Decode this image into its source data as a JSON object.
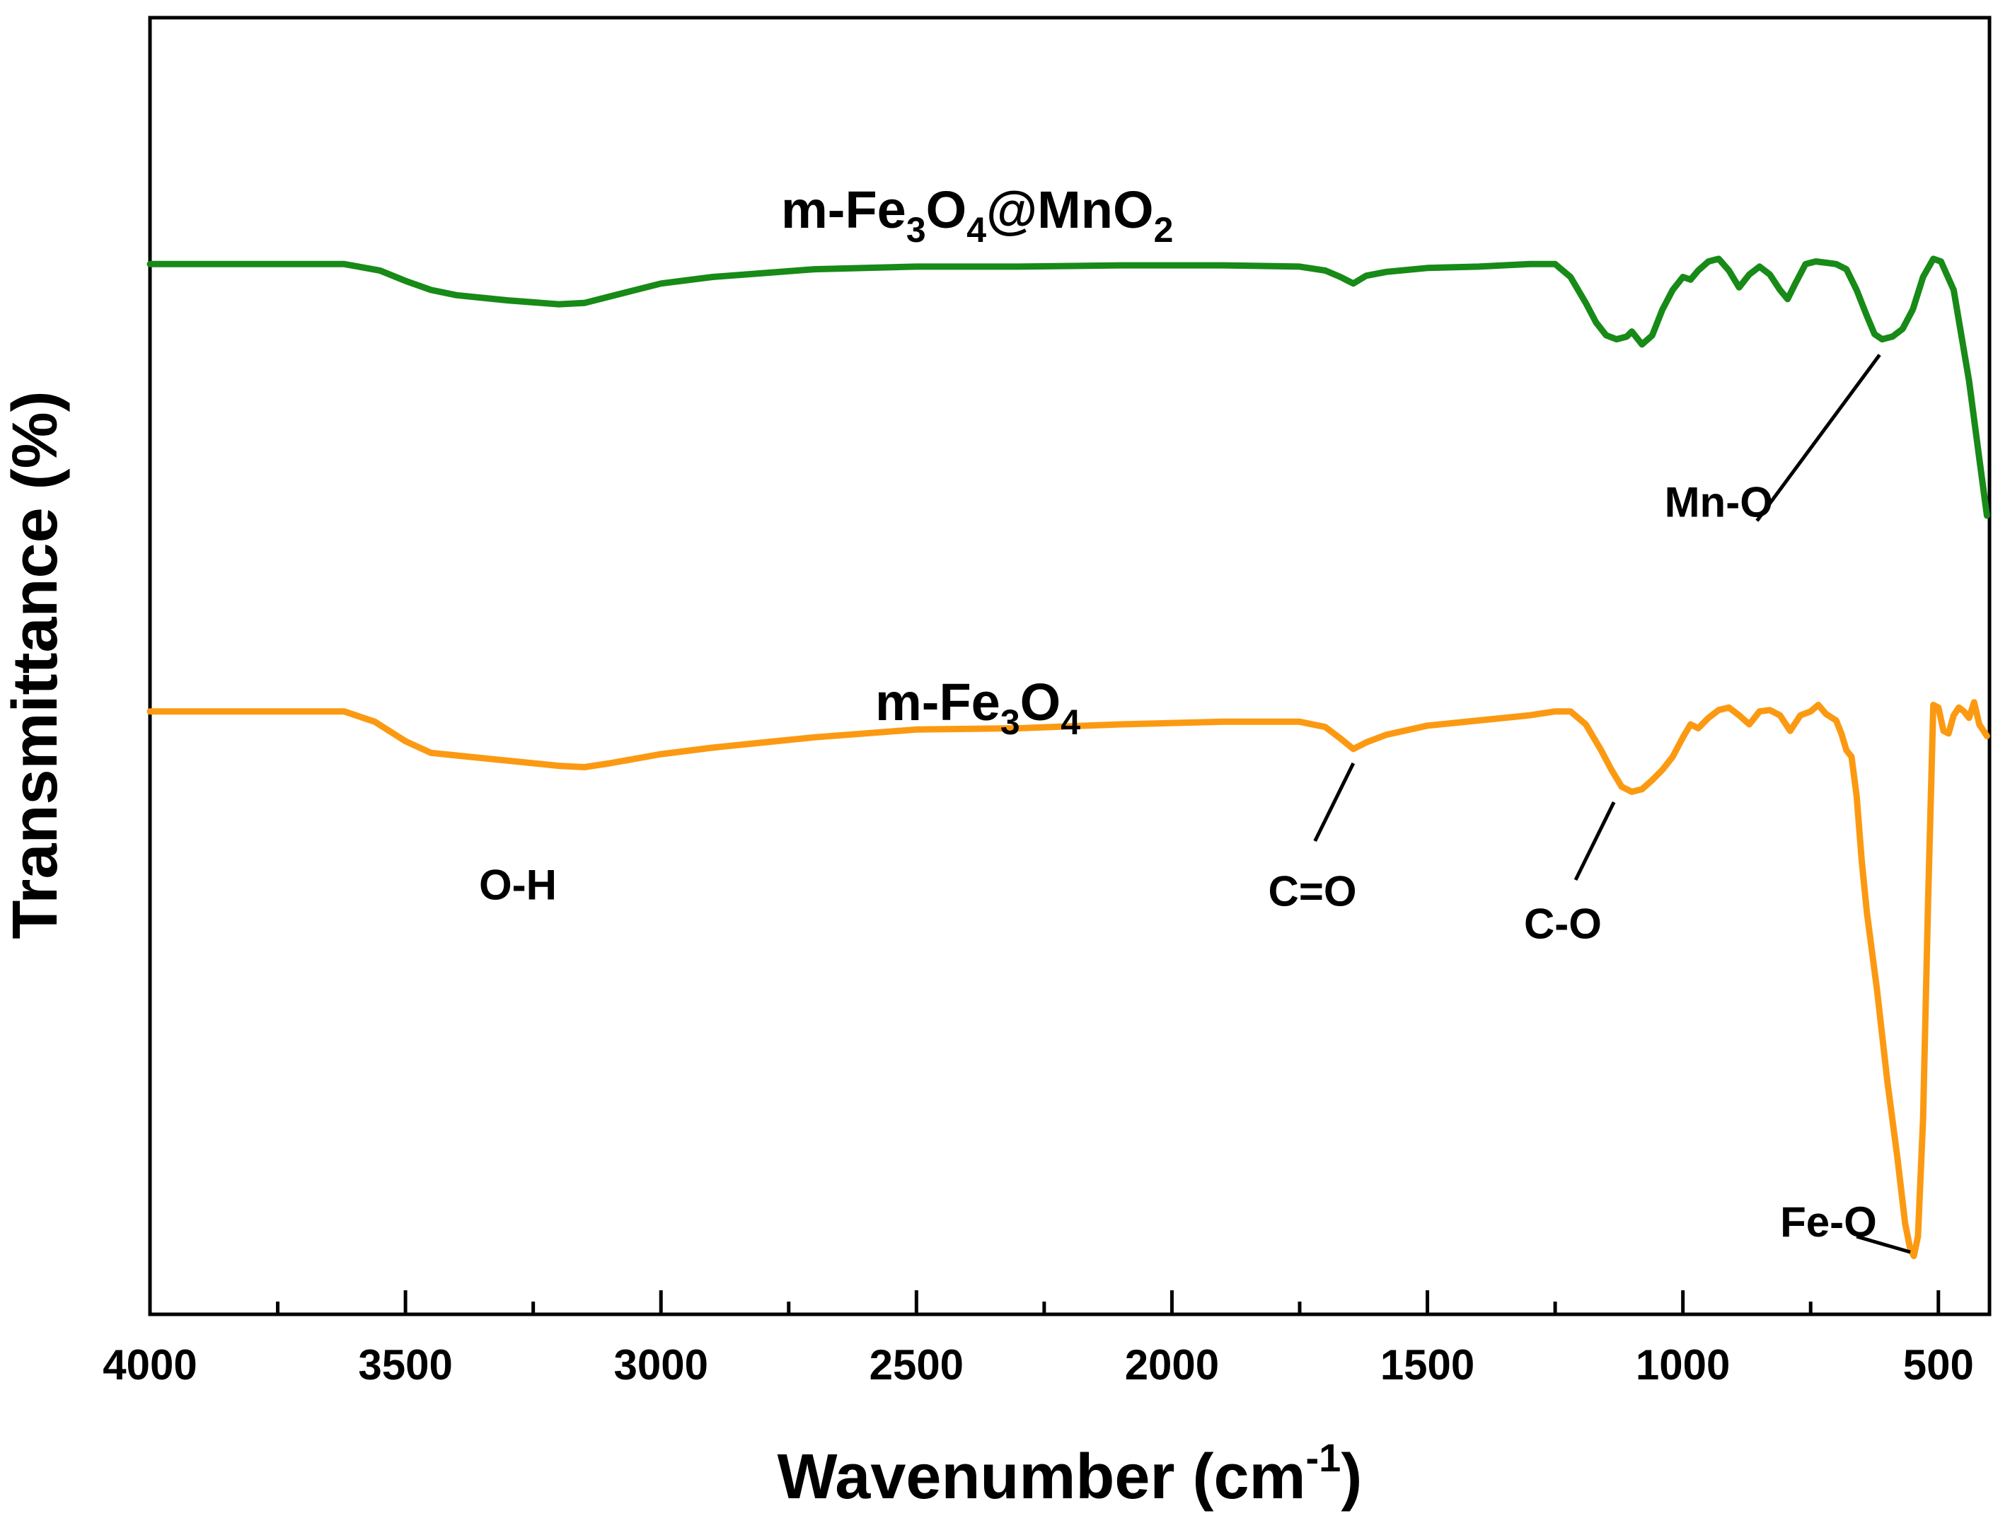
{
  "chart_data": {
    "type": "line",
    "title": "",
    "xlabel": "Wavenumber (cm",
    "xlabel_sup": "-1",
    "xlabel_close": ")",
    "ylabel": "Transmittance (%)",
    "xlim": [
      4000,
      400
    ],
    "ylim": [
      0,
      1
    ],
    "x_reversed": true,
    "y_ticks_shown": false,
    "x_ticks": [
      4000,
      3500,
      3000,
      2500,
      2000,
      1500,
      1000,
      500
    ],
    "x_tick_labels": [
      "4000",
      "3500",
      "3000",
      "2500",
      "2000",
      "1500",
      "1000",
      "500"
    ],
    "x_minor_ticks": [
      3750,
      3250,
      2750,
      2250,
      1750,
      1250,
      750
    ],
    "series": [
      {
        "name": "m-Fe3O4@MnO2",
        "label_parts": [
          {
            "t": "m-Fe",
            "sub": false
          },
          {
            "t": "3",
            "sub": true
          },
          {
            "t": "O",
            "sub": false
          },
          {
            "t": "4",
            "sub": true
          },
          {
            "t": "@MnO",
            "sub": false
          },
          {
            "t": "2",
            "sub": true
          }
        ],
        "color": "#178a17",
        "x": [
          4000,
          3800,
          3700,
          3620,
          3550,
          3500,
          3450,
          3400,
          3300,
          3200,
          3150,
          3100,
          3000,
          2900,
          2800,
          2700,
          2500,
          2300,
          2100,
          1900,
          1750,
          1700,
          1670,
          1645,
          1620,
          1580,
          1500,
          1400,
          1300,
          1250,
          1220,
          1190,
          1170,
          1150,
          1130,
          1110,
          1100,
          1080,
          1060,
          1040,
          1020,
          1000,
          985,
          970,
          950,
          930,
          910,
          890,
          870,
          850,
          830,
          810,
          795,
          780,
          760,
          740,
          720,
          700,
          680,
          660,
          640,
          625,
          610,
          590,
          570,
          550,
          530,
          510,
          495,
          470,
          440,
          420,
          405
        ],
        "y": [
          0.81,
          0.81,
          0.81,
          0.81,
          0.805,
          0.797,
          0.79,
          0.786,
          0.782,
          0.779,
          0.78,
          0.785,
          0.795,
          0.8,
          0.803,
          0.806,
          0.808,
          0.808,
          0.809,
          0.809,
          0.808,
          0.805,
          0.8,
          0.795,
          0.801,
          0.804,
          0.807,
          0.808,
          0.81,
          0.81,
          0.8,
          0.78,
          0.765,
          0.755,
          0.752,
          0.754,
          0.758,
          0.748,
          0.755,
          0.775,
          0.79,
          0.8,
          0.798,
          0.805,
          0.812,
          0.814,
          0.805,
          0.792,
          0.802,
          0.808,
          0.802,
          0.79,
          0.783,
          0.795,
          0.81,
          0.812,
          0.811,
          0.81,
          0.806,
          0.79,
          0.77,
          0.756,
          0.752,
          0.754,
          0.76,
          0.775,
          0.8,
          0.814,
          0.812,
          0.79,
          0.72,
          0.66,
          0.616
        ]
      },
      {
        "name": "m-Fe3O4",
        "label_parts": [
          {
            "t": "m-Fe",
            "sub": false
          },
          {
            "t": "3",
            "sub": true
          },
          {
            "t": "O",
            "sub": false
          },
          {
            "t": "4",
            "sub": true
          }
        ],
        "color": "#fb9a12",
        "x": [
          4000,
          3800,
          3700,
          3620,
          3560,
          3500,
          3450,
          3400,
          3300,
          3200,
          3150,
          3100,
          3000,
          2900,
          2800,
          2700,
          2500,
          2300,
          2100,
          1900,
          1750,
          1700,
          1670,
          1645,
          1620,
          1580,
          1500,
          1400,
          1300,
          1250,
          1220,
          1190,
          1160,
          1140,
          1120,
          1100,
          1080,
          1060,
          1040,
          1020,
          1000,
          985,
          970,
          950,
          930,
          910,
          890,
          870,
          850,
          830,
          810,
          790,
          770,
          750,
          735,
          720,
          700,
          690,
          680,
          670,
          660,
          650,
          640,
          630,
          620,
          600,
          580,
          565,
          555,
          548,
          540,
          530,
          520,
          510,
          500,
          490,
          480,
          470,
          460,
          450,
          440,
          430,
          420,
          405
        ],
        "y": [
          0.465,
          0.465,
          0.465,
          0.465,
          0.457,
          0.442,
          0.433,
          0.431,
          0.427,
          0.423,
          0.422,
          0.425,
          0.432,
          0.437,
          0.441,
          0.445,
          0.451,
          0.452,
          0.455,
          0.457,
          0.457,
          0.453,
          0.444,
          0.436,
          0.441,
          0.447,
          0.454,
          0.458,
          0.462,
          0.465,
          0.465,
          0.455,
          0.435,
          0.42,
          0.407,
          0.403,
          0.405,
          0.412,
          0.42,
          0.43,
          0.445,
          0.455,
          0.452,
          0.46,
          0.466,
          0.468,
          0.462,
          0.455,
          0.465,
          0.466,
          0.462,
          0.45,
          0.462,
          0.465,
          0.47,
          0.463,
          0.458,
          0.448,
          0.435,
          0.43,
          0.4,
          0.35,
          0.31,
          0.28,
          0.25,
          0.18,
          0.12,
          0.07,
          0.05,
          0.045,
          0.06,
          0.15,
          0.32,
          0.47,
          0.468,
          0.45,
          0.448,
          0.462,
          0.468,
          0.465,
          0.46,
          0.472,
          0.455,
          0.446
        ]
      }
    ],
    "annotations": [
      {
        "text": "O-H",
        "x": 3280,
        "y": 0.32
      },
      {
        "text": "C=O",
        "x": 1725,
        "y": 0.315,
        "line_from": [
          1720,
          0.365
        ],
        "line_to": [
          1645,
          0.425
        ]
      },
      {
        "text": "C-O",
        "x": 1235,
        "y": 0.29,
        "line_from": [
          1210,
          0.335
        ],
        "line_to": [
          1135,
          0.395
        ]
      },
      {
        "text": "Mn-O",
        "x": 930,
        "y": 0.615,
        "line_from": [
          855,
          0.612
        ],
        "line_to": [
          615,
          0.74
        ]
      },
      {
        "text": "Fe-O",
        "x": 715,
        "y": 0.06,
        "line_from": [
          660,
          0.06
        ],
        "line_to": [
          555,
          0.048
        ]
      }
    ]
  }
}
